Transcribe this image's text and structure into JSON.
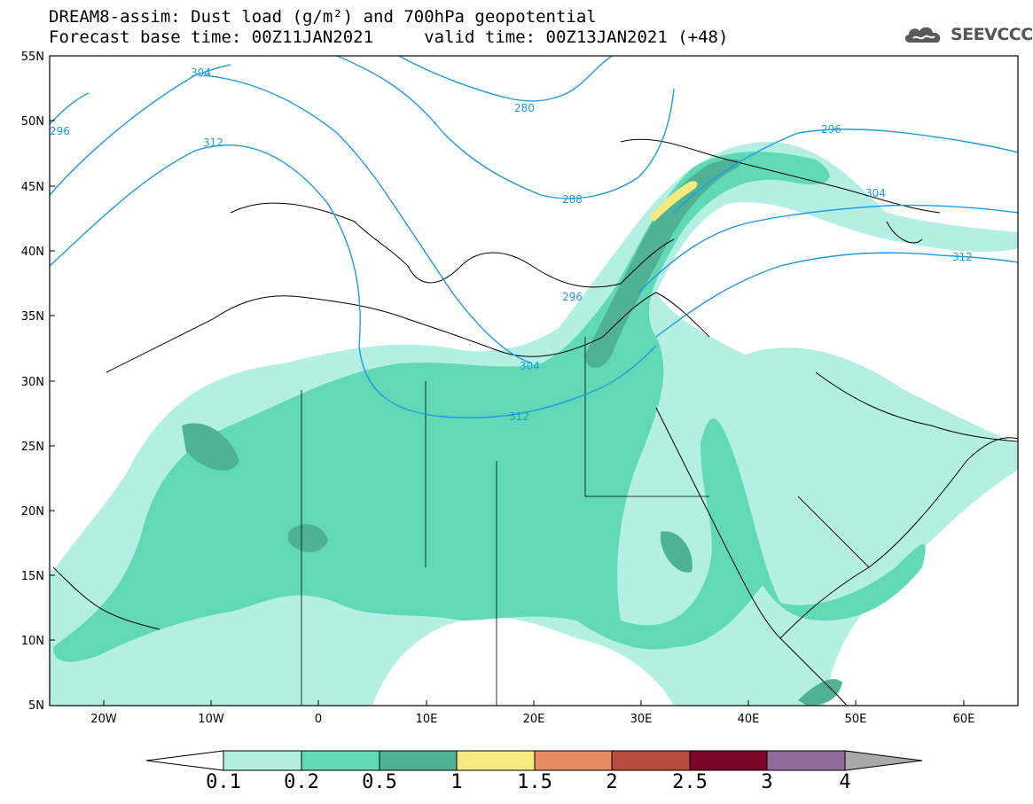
{
  "header": {
    "title_line1": "DREAM8-assim: Dust load (g/m²) and 700hPa geopotential",
    "title_line2": "Forecast base time: 00Z11JAN2021     valid time: 00Z13JAN2021 (+48)"
  },
  "logo": {
    "text": "SEEVCCC",
    "icon": "cloud-logo-icon"
  },
  "map": {
    "lat_labels": [
      "55N",
      "50N",
      "45N",
      "40N",
      "35N",
      "30N",
      "25N",
      "20N",
      "15N",
      "10N",
      "5N"
    ],
    "lon_labels": [
      "20W",
      "10W",
      "0",
      "10E",
      "20E",
      "30E",
      "40E",
      "50E",
      "60E"
    ],
    "contour_labels": [
      "304",
      "296",
      "312",
      "280",
      "288",
      "296",
      "304",
      "312",
      "296",
      "304",
      "312"
    ],
    "contour_color": "#1f9be6"
  },
  "colorbar": {
    "ticks": [
      "0.1",
      "0.2",
      "0.5",
      "1",
      "1.5",
      "2",
      "2.5",
      "3",
      "4"
    ],
    "colors": [
      "#ffffff",
      "#b4efe4",
      "#61d9b4",
      "#4fb393",
      "#f3eb7f",
      "#e98c63",
      "#b84d3f",
      "#7d0628",
      "#8e6b9b",
      "#a9a9a9"
    ]
  }
}
